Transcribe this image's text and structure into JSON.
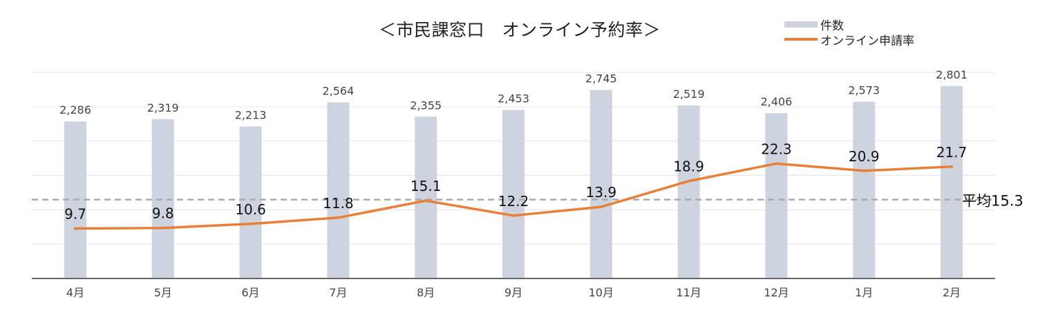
{
  "chart_data": {
    "type": "bar",
    "title": "＜市民課窓口　オンライン予約率＞",
    "categories": [
      "4月",
      "5月",
      "6月",
      "7月",
      "8月",
      "9月",
      "10月",
      "11月",
      "12月",
      "1月",
      "2月"
    ],
    "series": [
      {
        "name": "件数",
        "type": "bar",
        "color": "#cdd3df",
        "values": [
          2286,
          2319,
          2213,
          2564,
          2355,
          2453,
          2745,
          2519,
          2406,
          2573,
          2801
        ],
        "labels": [
          "2,286",
          "2,319",
          "2,213",
          "2,564",
          "2,355",
          "2,453",
          "2,745",
          "2,519",
          "2,406",
          "2,573",
          "2,801"
        ]
      },
      {
        "name": "オンライン申請率",
        "type": "line",
        "color": "#eb7e35",
        "values": [
          9.7,
          9.8,
          10.6,
          11.8,
          15.1,
          12.2,
          13.9,
          18.9,
          22.3,
          20.9,
          21.7
        ],
        "labels": [
          "9.7",
          "9.8",
          "10.6",
          "11.8",
          "15.1",
          "12.2",
          "13.9",
          "18.9",
          "22.3",
          "20.9",
          "21.7"
        ]
      }
    ],
    "average": {
      "value": 15.3,
      "label": "平均15.3",
      "color": "#aaaaaa"
    },
    "bar_axis_range": [
      0,
      3000
    ],
    "line_axis_range": [
      0,
      40
    ],
    "grid": true,
    "legend_position": "top-right"
  }
}
